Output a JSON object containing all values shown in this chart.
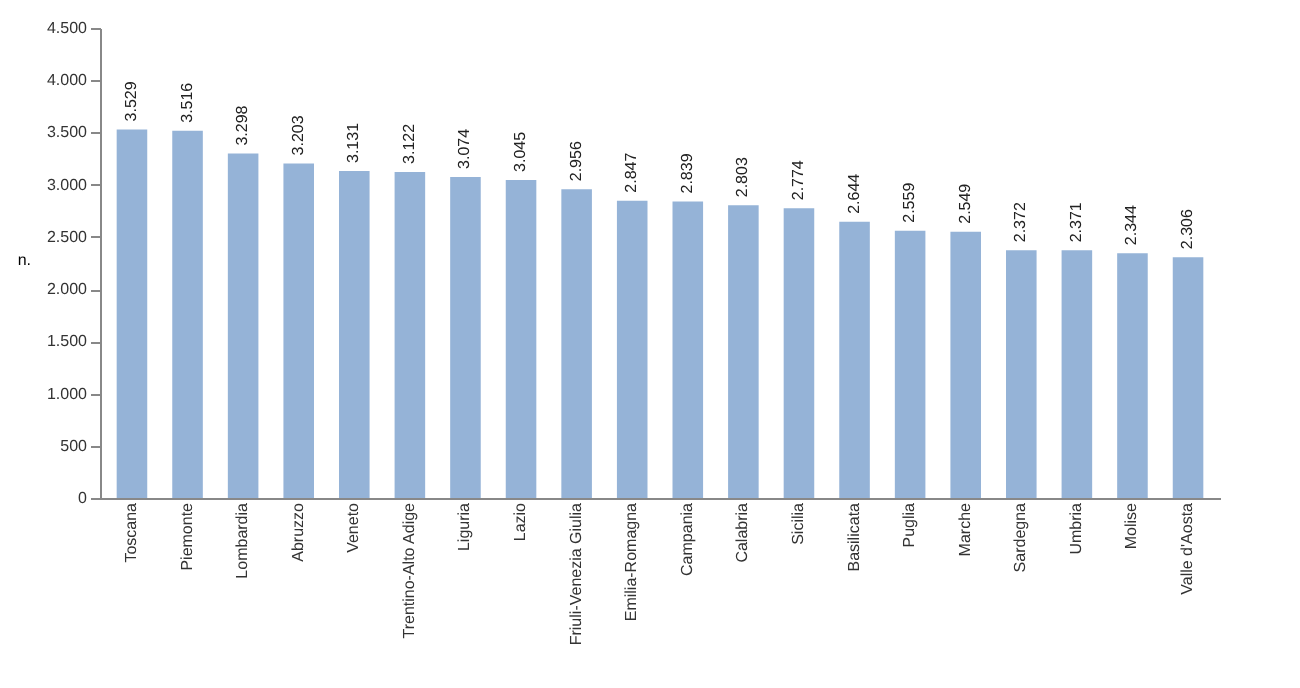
{
  "chart_data": {
    "type": "bar",
    "ylabel": "n.",
    "categories": [
      "Toscana",
      "Piemonte",
      "Lombardia",
      "Abruzzo",
      "Veneto",
      "Trentino-Alto Adige",
      "Liguria",
      "Lazio",
      "Friuli-Venezia Giulia",
      "Emilia-Romagna",
      "Campania",
      "Calabria",
      "Sicilia",
      "Basilicata",
      "Puglia",
      "Marche",
      "Sardegna",
      "Umbria",
      "Molise",
      "Valle d'Aosta"
    ],
    "values": [
      3529,
      3516,
      3298,
      3203,
      3131,
      3122,
      3074,
      3045,
      2956,
      2847,
      2839,
      2803,
      2774,
      2644,
      2559,
      2549,
      2372,
      2371,
      2344,
      2306
    ],
    "value_labels": [
      "3.529",
      "3.516",
      "3.298",
      "3.203",
      "3.131",
      "3.122",
      "3.074",
      "3.045",
      "2.956",
      "2.847",
      "2.839",
      "2.803",
      "2.774",
      "2.644",
      "2.559",
      "2.549",
      "2.372",
      "2.371",
      "2.344",
      "2.306"
    ],
    "color": "#95b3d7",
    "ylim": [
      0,
      4500
    ],
    "yticks": [
      0,
      {
        "value": 500,
        "label": "500"
      },
      {
        "value": 1000,
        "label": "1.000"
      },
      {
        "value": 1500,
        "label": "1.500"
      },
      {
        "value": 2000,
        "label": "2.000"
      },
      {
        "value": 2500,
        "label": "2.500"
      },
      {
        "value": 3000,
        "label": "3.000"
      },
      {
        "value": 3500,
        "label": "3.500"
      },
      {
        "value": 4000,
        "label": "4.000"
      },
      {
        "value": 4500,
        "label": "4.500"
      }
    ],
    "grid": false
  }
}
